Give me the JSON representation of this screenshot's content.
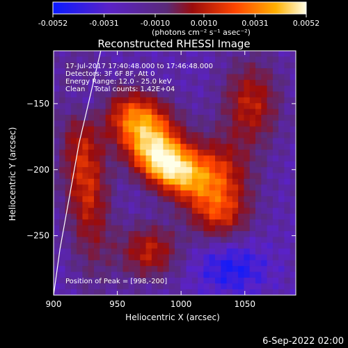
{
  "chart_data": {
    "type": "heatmap",
    "title": "Reconstructed RHESSI Image",
    "colorbar": {
      "ticks": [
        "-0.0052",
        "-0.0031",
        "-0.0010",
        "0.0010",
        "0.0031",
        "0.0052"
      ],
      "range": [
        -0.0052,
        0.0052
      ],
      "unit_label": "(photons cm⁻² s⁻¹ asec⁻²)",
      "colors": [
        "#0a1aff",
        "#5a22c8",
        "#5a2a78",
        "#9a0c0c",
        "#ff4500",
        "#ffb000",
        "#ffffe8"
      ]
    },
    "xlabel": "Heliocentric X (arcsec)",
    "ylabel": "Heliocentric Y (arcsec)",
    "xlim": [
      900,
      1090
    ],
    "ylim": [
      -295,
      -110
    ],
    "xticks": [
      900,
      950,
      1000,
      1050
    ],
    "yticks": [
      -150,
      -200,
      -250
    ],
    "annotations": [
      "17-Jul-2017 17:40:48.000 to 17:46:48.000",
      "Detectors: 3F 6F 8F, Att 0",
      "Energy Range: 12.0 - 25.0 keV",
      "Clean    Total counts: 1.42E+04"
    ],
    "peak_label": "Position of Peak = [998,-200]",
    "peak": [
      998,
      -200
    ],
    "limb_points": [
      [
        937,
        -110
      ],
      [
        920,
        -180
      ],
      [
        905,
        -260
      ],
      [
        900,
        -295
      ]
    ]
  },
  "footer": {
    "timestamp": "6-Sep-2022 02:00"
  }
}
